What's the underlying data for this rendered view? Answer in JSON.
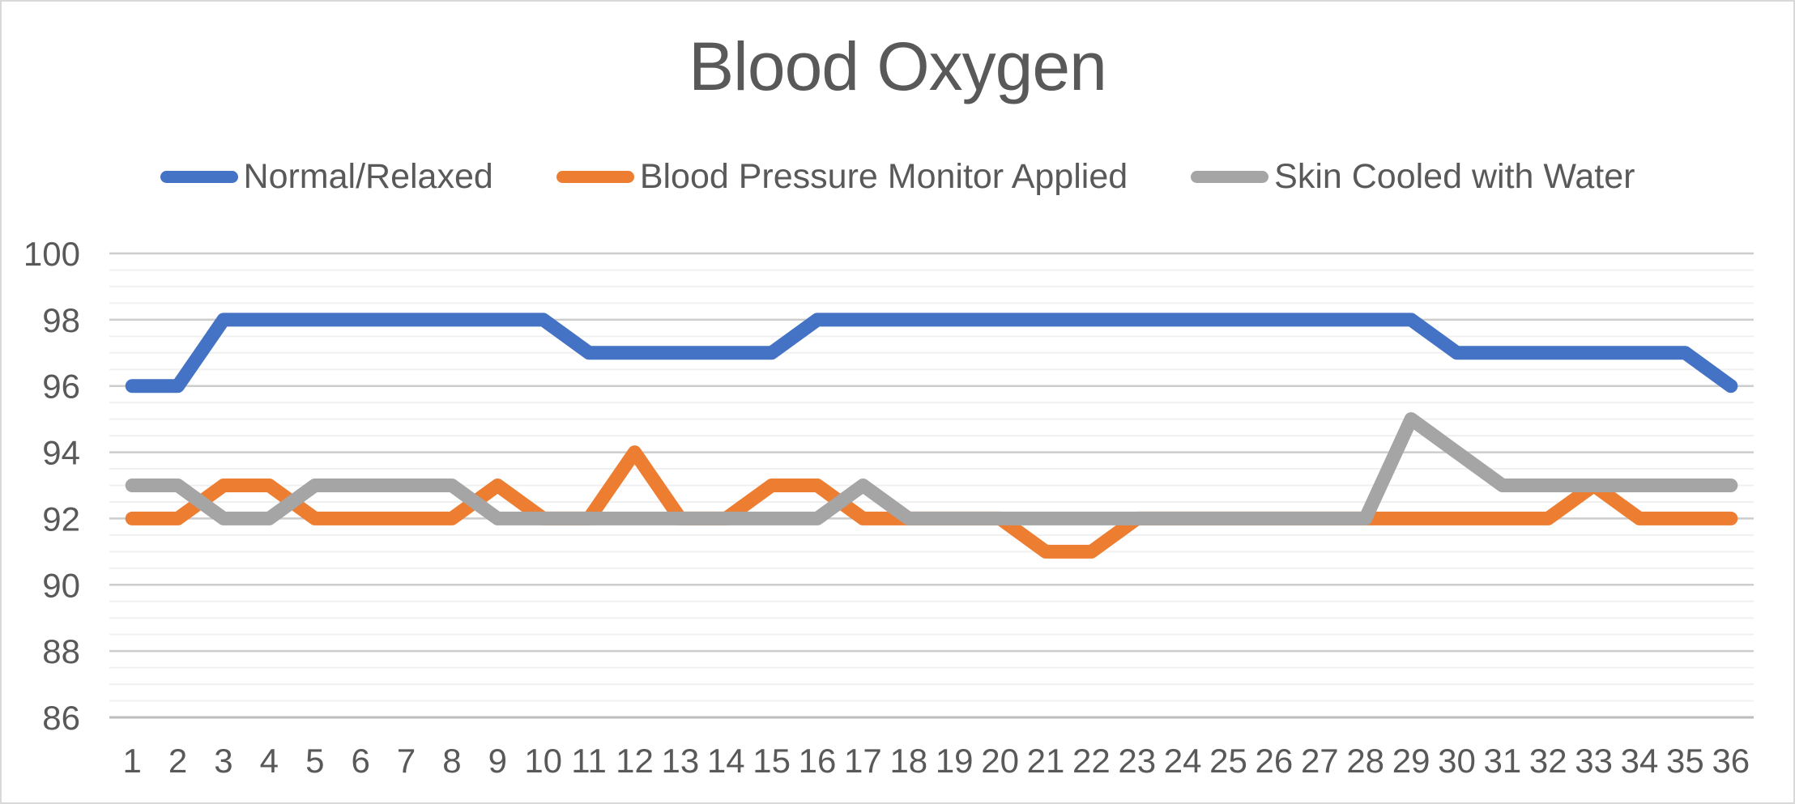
{
  "title": "Blood Oxygen",
  "colors": {
    "accent_blue": "#4472C4",
    "accent_orange": "#ED7D31",
    "accent_gray": "#A5A5A5",
    "text": "#595959",
    "grid_major": "#CDCDCD",
    "grid_minor": "#F0F0F0",
    "axis_line": "#BDBDBD",
    "frame_border": "#D9D9D9"
  },
  "legend": [
    {
      "label": "Normal/Relaxed",
      "color": "#4472C4"
    },
    {
      "label": "Blood Pressure Monitor Applied",
      "color": "#ED7D31"
    },
    {
      "label": "Skin Cooled with Water",
      "color": "#A5A5A5"
    }
  ],
  "chart_data": {
    "type": "line",
    "title": "Blood Oxygen",
    "x": [
      1,
      2,
      3,
      4,
      5,
      6,
      7,
      8,
      9,
      10,
      11,
      12,
      13,
      14,
      15,
      16,
      17,
      18,
      19,
      20,
      21,
      22,
      23,
      24,
      25,
      26,
      27,
      28,
      29,
      30,
      31,
      32,
      33,
      34,
      35,
      36
    ],
    "series": [
      {
        "name": "Normal/Relaxed",
        "color": "#4472C4",
        "values": [
          96,
          96,
          98,
          98,
          98,
          98,
          98,
          98,
          98,
          98,
          97,
          97,
          97,
          97,
          97,
          98,
          98,
          98,
          98,
          98,
          98,
          98,
          98,
          98,
          98,
          98,
          98,
          98,
          98,
          97,
          97,
          97,
          97,
          97,
          97,
          96
        ]
      },
      {
        "name": "Blood Pressure Monitor Applied",
        "color": "#ED7D31",
        "values": [
          92,
          92,
          93,
          93,
          92,
          92,
          92,
          92,
          93,
          92,
          92,
          94,
          92,
          92,
          93,
          93,
          92,
          92,
          92,
          92,
          91,
          91,
          92,
          92,
          92,
          92,
          92,
          92,
          92,
          92,
          92,
          92,
          93,
          92,
          92,
          92
        ]
      },
      {
        "name": "Skin Cooled with Water",
        "color": "#A5A5A5",
        "values": [
          93,
          93,
          92,
          92,
          93,
          93,
          93,
          93,
          92,
          92,
          92,
          92,
          92,
          92,
          92,
          92,
          93,
          92,
          92,
          92,
          92,
          92,
          92,
          92,
          92,
          92,
          92,
          92,
          95,
          94,
          93,
          93,
          93,
          93,
          93,
          93
        ]
      }
    ],
    "ylim": [
      86,
      100
    ],
    "ytick_step": 2,
    "yminor_step": 0.5,
    "ytick_labels": [
      "86",
      "88",
      "90",
      "92",
      "94",
      "96",
      "98",
      "100"
    ],
    "grid": "horizontal",
    "legend_position": "top",
    "xlabel": "",
    "ylabel": ""
  }
}
